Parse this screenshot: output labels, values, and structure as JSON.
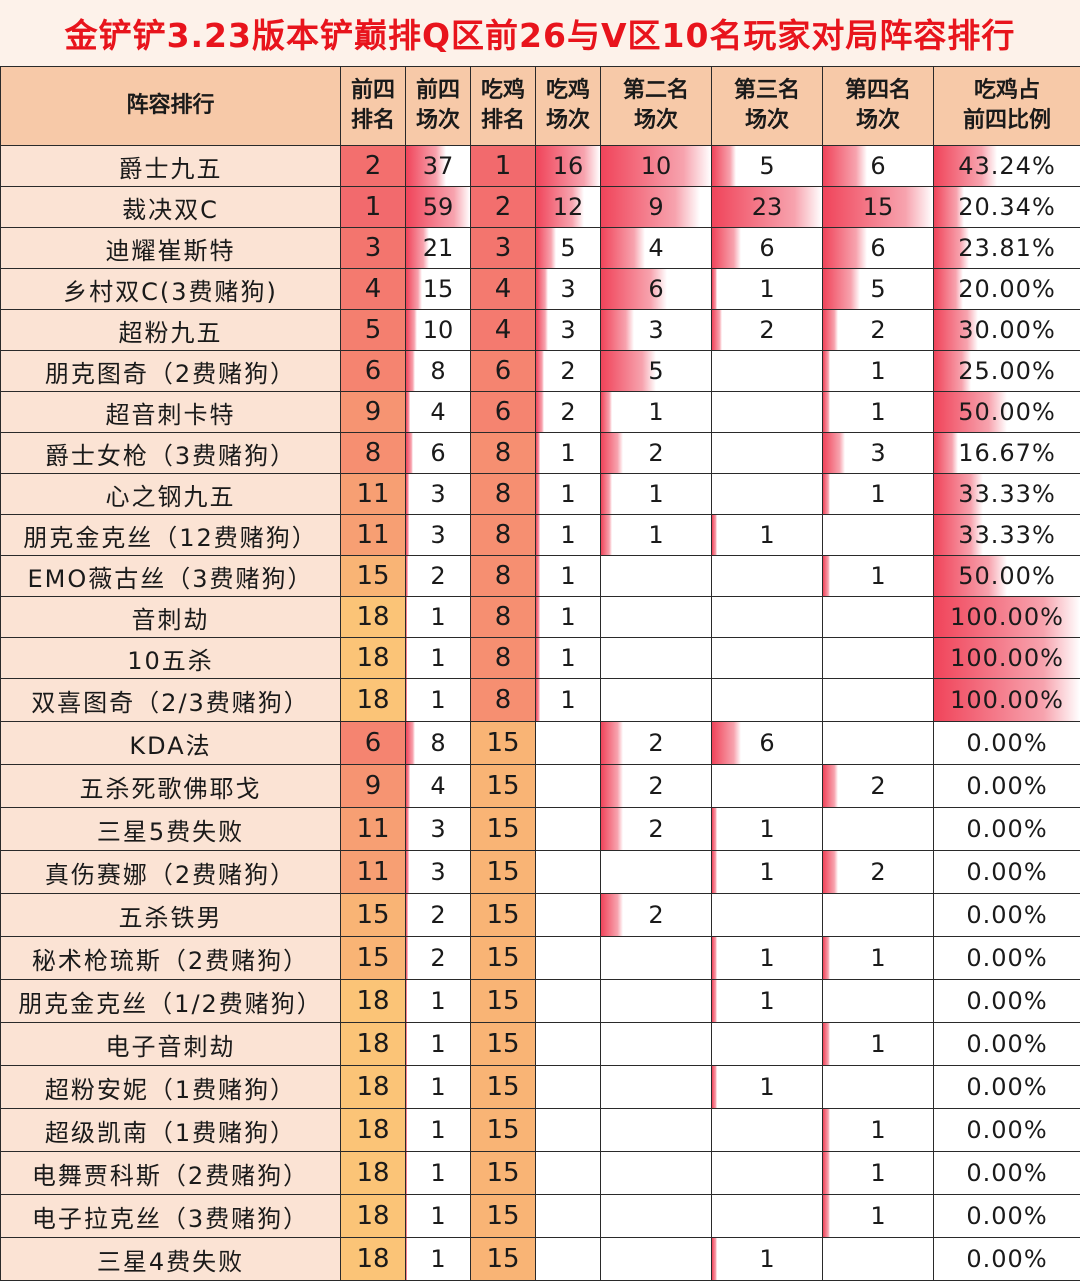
{
  "title": "金铲铲3.23版本铲巅排Q区前26与V区10名玩家对局阵容排行",
  "headers": [
    {
      "l1": "阵容排行",
      "l2": ""
    },
    {
      "l1": "前四",
      "l2": "排名"
    },
    {
      "l1": "前四",
      "l2": "场次"
    },
    {
      "l1": "吃鸡",
      "l2": "排名"
    },
    {
      "l1": "吃鸡",
      "l2": "场次"
    },
    {
      "l1": "第二名",
      "l2": "场次"
    },
    {
      "l1": "第三名",
      "l2": "场次"
    },
    {
      "l1": "第四名",
      "l2": "场次"
    },
    {
      "l1": "吃鸡占",
      "l2": "前四比例"
    }
  ],
  "rows": [
    {
      "name": "爵士九五",
      "top4_rank": "2",
      "top4_games": "37",
      "win_rank": "1",
      "win_games": "16",
      "second": "10",
      "third": "5",
      "fourth": "6",
      "ratio": "43.24%"
    },
    {
      "name": "裁决双C",
      "top4_rank": "1",
      "top4_games": "59",
      "win_rank": "2",
      "win_games": "12",
      "second": "9",
      "third": "23",
      "fourth": "15",
      "ratio": "20.34%"
    },
    {
      "name": "迪耀崔斯特",
      "top4_rank": "3",
      "top4_games": "21",
      "win_rank": "3",
      "win_games": "5",
      "second": "4",
      "third": "6",
      "fourth": "6",
      "ratio": "23.81%"
    },
    {
      "name": "乡村双C(3费赌狗)",
      "top4_rank": "4",
      "top4_games": "15",
      "win_rank": "4",
      "win_games": "3",
      "second": "6",
      "third": "1",
      "fourth": "5",
      "ratio": "20.00%"
    },
    {
      "name": "超粉九五",
      "top4_rank": "5",
      "top4_games": "10",
      "win_rank": "4",
      "win_games": "3",
      "second": "3",
      "third": "2",
      "fourth": "2",
      "ratio": "30.00%"
    },
    {
      "name": "朋克图奇（2费赌狗）",
      "top4_rank": "6",
      "top4_games": "8",
      "win_rank": "6",
      "win_games": "2",
      "second": "5",
      "third": "",
      "fourth": "1",
      "ratio": "25.00%"
    },
    {
      "name": "超音刺卡特",
      "top4_rank": "9",
      "top4_games": "4",
      "win_rank": "6",
      "win_games": "2",
      "second": "1",
      "third": "",
      "fourth": "1",
      "ratio": "50.00%"
    },
    {
      "name": "爵士女枪（3费赌狗）",
      "top4_rank": "8",
      "top4_games": "6",
      "win_rank": "8",
      "win_games": "1",
      "second": "2",
      "third": "",
      "fourth": "3",
      "ratio": "16.67%"
    },
    {
      "name": "心之钢九五",
      "top4_rank": "11",
      "top4_games": "3",
      "win_rank": "8",
      "win_games": "1",
      "second": "1",
      "third": "",
      "fourth": "1",
      "ratio": "33.33%"
    },
    {
      "name": "朋克金克丝（12费赌狗）",
      "top4_rank": "11",
      "top4_games": "3",
      "win_rank": "8",
      "win_games": "1",
      "second": "1",
      "third": "1",
      "fourth": "",
      "ratio": "33.33%"
    },
    {
      "name": "EMO薇古丝（3费赌狗）",
      "top4_rank": "15",
      "top4_games": "2",
      "win_rank": "8",
      "win_games": "1",
      "second": "",
      "third": "",
      "fourth": "1",
      "ratio": "50.00%"
    },
    {
      "name": "音刺劫",
      "top4_rank": "18",
      "top4_games": "1",
      "win_rank": "8",
      "win_games": "1",
      "second": "",
      "third": "",
      "fourth": "",
      "ratio": "100.00%"
    },
    {
      "name": "10五杀",
      "top4_rank": "18",
      "top4_games": "1",
      "win_rank": "8",
      "win_games": "1",
      "second": "",
      "third": "",
      "fourth": "",
      "ratio": "100.00%"
    },
    {
      "name": "双喜图奇（2/3费赌狗）",
      "top4_rank": "18",
      "top4_games": "1",
      "win_rank": "8",
      "win_games": "1",
      "second": "",
      "third": "",
      "fourth": "",
      "ratio": "100.00%"
    },
    {
      "name": "KDA法",
      "top4_rank": "6",
      "top4_games": "8",
      "win_rank": "15",
      "win_games": "",
      "second": "2",
      "third": "6",
      "fourth": "",
      "ratio": "0.00%"
    },
    {
      "name": "五杀死歌佛耶戈",
      "top4_rank": "9",
      "top4_games": "4",
      "win_rank": "15",
      "win_games": "",
      "second": "2",
      "third": "",
      "fourth": "2",
      "ratio": "0.00%"
    },
    {
      "name": "三星5费失败",
      "top4_rank": "11",
      "top4_games": "3",
      "win_rank": "15",
      "win_games": "",
      "second": "2",
      "third": "1",
      "fourth": "",
      "ratio": "0.00%"
    },
    {
      "name": "真伤赛娜（2费赌狗）",
      "top4_rank": "11",
      "top4_games": "3",
      "win_rank": "15",
      "win_games": "",
      "second": "",
      "third": "1",
      "fourth": "2",
      "ratio": "0.00%"
    },
    {
      "name": "五杀铁男",
      "top4_rank": "15",
      "top4_games": "2",
      "win_rank": "15",
      "win_games": "",
      "second": "2",
      "third": "",
      "fourth": "",
      "ratio": "0.00%"
    },
    {
      "name": "秘术枪琉斯（2费赌狗）",
      "top4_rank": "15",
      "top4_games": "2",
      "win_rank": "15",
      "win_games": "",
      "second": "",
      "third": "1",
      "fourth": "1",
      "ratio": "0.00%"
    },
    {
      "name": "朋克金克丝（1/2费赌狗）",
      "top4_rank": "18",
      "top4_games": "1",
      "win_rank": "15",
      "win_games": "",
      "second": "",
      "third": "1",
      "fourth": "",
      "ratio": "0.00%"
    },
    {
      "name": "电子音刺劫",
      "top4_rank": "18",
      "top4_games": "1",
      "win_rank": "15",
      "win_games": "",
      "second": "",
      "third": "",
      "fourth": "1",
      "ratio": "0.00%"
    },
    {
      "name": "超粉安妮（1费赌狗）",
      "top4_rank": "18",
      "top4_games": "1",
      "win_rank": "15",
      "win_games": "",
      "second": "",
      "third": "1",
      "fourth": "",
      "ratio": "0.00%"
    },
    {
      "name": "超级凯南（1费赌狗）",
      "top4_rank": "18",
      "top4_games": "1",
      "win_rank": "15",
      "win_games": "",
      "second": "",
      "third": "",
      "fourth": "1",
      "ratio": "0.00%"
    },
    {
      "name": "电舞贾科斯（2费赌狗）",
      "top4_rank": "18",
      "top4_games": "1",
      "win_rank": "15",
      "win_games": "",
      "second": "",
      "third": "",
      "fourth": "1",
      "ratio": "0.00%"
    },
    {
      "name": "电子拉克丝（3费赌狗）",
      "top4_rank": "18",
      "top4_games": "1",
      "win_rank": "15",
      "win_games": "",
      "second": "",
      "third": "",
      "fourth": "1",
      "ratio": "0.00%"
    },
    {
      "name": "三星4费失败",
      "top4_rank": "18",
      "top4_games": "1",
      "win_rank": "15",
      "win_games": "",
      "second": "",
      "third": "1",
      "fourth": "",
      "ratio": "0.00%"
    }
  ],
  "colors": {
    "title_text": "#e8141c",
    "header_bg": "#f7c9a8",
    "name_bg": "#fbe3d4",
    "heat_high": "#f26a6d",
    "heat_low": "#fbc477",
    "bar": "#f0445a"
  }
}
